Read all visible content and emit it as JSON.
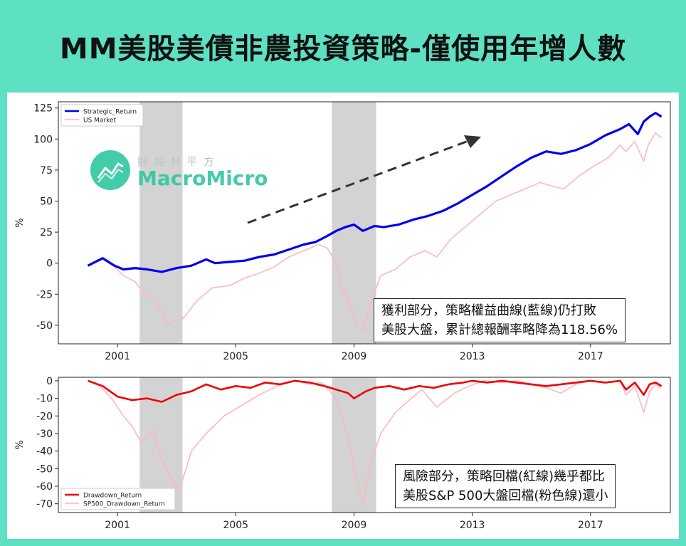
{
  "header": {
    "title": "MM美股美債非農投資策略-僅使用年增人數"
  },
  "watermark": {
    "cn": "財 經 M 平 方",
    "en": "MacroMicro",
    "icon": "macromicro-chart-logo-icon",
    "color": "#2fc6a0"
  },
  "annotations": {
    "top": [
      "獲利部分，策略權益曲線(藍線)仍打敗",
      "美股大盤，累計總報酬率略降為118.56%"
    ],
    "bottom": [
      "風險部分，策略回檔(紅線)幾乎都比",
      "美股S&P 500大盤回檔(粉色線)還小"
    ]
  },
  "colors": {
    "strategy": "#0000ee",
    "market": "#ffb6c1",
    "drawdown": "#ee0000",
    "sp500_drawdown": "#ffb6c1",
    "recession": "#d3d3d3",
    "background": "#5ee0c2"
  },
  "chart_data": [
    {
      "type": "line",
      "ylabel": "%",
      "ylim": [
        -65,
        130
      ],
      "xlim": [
        1999.0,
        2019.7
      ],
      "x_ticks": [
        2001,
        2005,
        2009,
        2013,
        2017
      ],
      "y_ticks": [
        125,
        100,
        75,
        50,
        25,
        0,
        -25,
        -50
      ],
      "legend": {
        "placement": "top-left",
        "entries": [
          "Strategic_Return",
          "US Market"
        ]
      },
      "shaded_periods": [
        [
          2001.75,
          2003.2
        ],
        [
          2008.25,
          2009.75
        ]
      ],
      "series": [
        {
          "name": "Strategic_Return",
          "x": [
            2000.0,
            2000.5,
            2000.9,
            2001.2,
            2001.6,
            2002.0,
            2002.5,
            2003.0,
            2003.5,
            2004.0,
            2004.3,
            2004.8,
            2005.3,
            2005.8,
            2006.3,
            2006.8,
            2007.3,
            2007.7,
            2008.1,
            2008.4,
            2008.7,
            2009.0,
            2009.3,
            2009.7,
            2010.0,
            2010.5,
            2011.0,
            2011.5,
            2012.0,
            2012.5,
            2013.0,
            2013.5,
            2014.0,
            2014.5,
            2015.0,
            2015.5,
            2016.0,
            2016.5,
            2017.0,
            2017.5,
            2018.0,
            2018.3,
            2018.6,
            2018.8,
            2019.0,
            2019.2,
            2019.4
          ],
          "y": [
            -2,
            4,
            -2,
            -5,
            -4,
            -5,
            -7,
            -4,
            -2,
            3,
            0,
            1,
            2,
            5,
            7,
            11,
            15,
            17,
            22,
            26,
            29,
            31,
            26,
            30,
            29,
            31,
            35,
            38,
            42,
            48,
            55,
            62,
            70,
            78,
            85,
            90,
            88,
            91,
            96,
            103,
            108,
            112,
            104,
            114,
            118,
            121,
            118
          ]
        },
        {
          "name": "US Market",
          "x": [
            2000.0,
            2000.5,
            2000.9,
            2001.2,
            2001.6,
            2001.9,
            2002.3,
            2002.7,
            2002.9,
            2003.2,
            2003.7,
            2004.2,
            2004.8,
            2005.3,
            2005.8,
            2006.3,
            2006.8,
            2007.3,
            2007.8,
            2008.1,
            2008.4,
            2008.6,
            2008.9,
            2009.1,
            2009.3,
            2009.6,
            2009.9,
            2010.4,
            2010.9,
            2011.4,
            2011.8,
            2012.3,
            2012.8,
            2013.3,
            2013.8,
            2014.3,
            2014.8,
            2015.3,
            2015.7,
            2016.1,
            2016.6,
            2017.1,
            2017.6,
            2018.0,
            2018.2,
            2018.5,
            2018.8,
            2018.95,
            2019.2,
            2019.4
          ],
          "y": [
            -2,
            3,
            -3,
            -10,
            -15,
            -25,
            -30,
            -50,
            -47,
            -45,
            -30,
            -20,
            -18,
            -12,
            -8,
            -3,
            5,
            10,
            15,
            12,
            0,
            -20,
            -35,
            -50,
            -55,
            -30,
            -10,
            -5,
            5,
            10,
            5,
            20,
            30,
            40,
            50,
            55,
            60,
            65,
            62,
            60,
            70,
            78,
            85,
            95,
            90,
            98,
            82,
            95,
            105,
            101
          ]
        }
      ]
    },
    {
      "type": "line",
      "ylabel": "%",
      "ylim": [
        -75,
        2
      ],
      "xlim": [
        1999.0,
        2019.7
      ],
      "x_ticks": [
        2001,
        2005,
        2009,
        2013,
        2017
      ],
      "y_ticks": [
        0,
        -10,
        -20,
        -30,
        -40,
        -50,
        -60,
        -70
      ],
      "legend": {
        "placement": "bottom-left",
        "entries": [
          "Drawdown_Return",
          "SP500_Drawdown_Return"
        ]
      },
      "shaded_periods": [
        [
          2001.75,
          2003.2
        ],
        [
          2008.25,
          2009.75
        ]
      ],
      "series": [
        {
          "name": "Drawdown_Return",
          "x": [
            2000.0,
            2000.5,
            2001.0,
            2001.5,
            2002.0,
            2002.5,
            2003.0,
            2003.5,
            2004.0,
            2004.5,
            2005.0,
            2005.5,
            2006.0,
            2006.5,
            2007.0,
            2007.5,
            2008.0,
            2008.4,
            2008.8,
            2009.0,
            2009.4,
            2009.7,
            2010.2,
            2010.7,
            2011.2,
            2011.7,
            2012.2,
            2012.7,
            2013.0,
            2013.5,
            2014.0,
            2014.5,
            2015.0,
            2015.5,
            2016.0,
            2016.5,
            2017.0,
            2017.5,
            2018.0,
            2018.2,
            2018.5,
            2018.8,
            2019.0,
            2019.2,
            2019.4
          ],
          "y": [
            0,
            -3,
            -9,
            -11,
            -10,
            -12,
            -8,
            -6,
            -2,
            -5,
            -3,
            -4,
            -1,
            -2,
            0,
            -1,
            -3,
            -5,
            -7,
            -10,
            -6,
            -4,
            -3,
            -5,
            -3,
            -4,
            -2,
            -1,
            0,
            -1,
            0,
            -1,
            -2,
            -3,
            -2,
            -1,
            0,
            -1,
            0,
            -5,
            -1,
            -8,
            -2,
            -1,
            -3
          ]
        },
        {
          "name": "SP500_Drawdown_Return",
          "x": [
            2000.0,
            2000.4,
            2000.8,
            2001.2,
            2001.5,
            2001.8,
            2002.2,
            2002.5,
            2002.8,
            2003.1,
            2003.5,
            2004.0,
            2004.6,
            2005.2,
            2005.8,
            2006.4,
            2007.0,
            2007.5,
            2007.9,
            2008.3,
            2008.6,
            2008.9,
            2009.1,
            2009.3,
            2009.6,
            2009.9,
            2010.4,
            2010.8,
            2011.3,
            2011.8,
            2012.4,
            2012.9,
            2013.4,
            2014.0,
            2014.5,
            2015.0,
            2015.5,
            2016.0,
            2016.5,
            2017.0,
            2017.5,
            2018.0,
            2018.2,
            2018.5,
            2018.8,
            2019.0,
            2019.2,
            2019.4
          ],
          "y": [
            0,
            -3,
            -10,
            -20,
            -26,
            -35,
            -28,
            -45,
            -55,
            -62,
            -40,
            -30,
            -20,
            -14,
            -8,
            -3,
            0,
            -2,
            -1,
            -8,
            -20,
            -40,
            -57,
            -69,
            -45,
            -30,
            -18,
            -12,
            -5,
            -15,
            -7,
            -3,
            0,
            -1,
            0,
            -2,
            -4,
            -7,
            -2,
            0,
            -1,
            0,
            -8,
            -3,
            -18,
            -6,
            -2,
            -4
          ]
        }
      ]
    }
  ]
}
